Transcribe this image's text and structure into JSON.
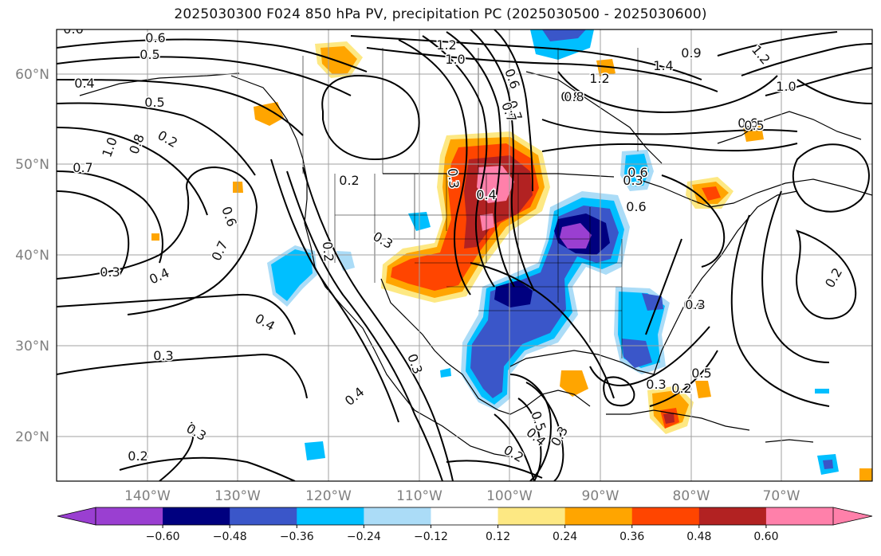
{
  "title": "2025030300 F024 850 hPa PV, precipitation PC (2025030500 - 2025030600)",
  "lat_labels": [
    "60°N",
    "50°N",
    "40°N",
    "30°N",
    "20°N"
  ],
  "lon_labels": [
    "140°W",
    "130°W",
    "120°W",
    "110°W",
    "100°W",
    "90°W",
    "80°W",
    "70°W"
  ],
  "contour_labels": [
    "0.6",
    "0.6",
    "0.5",
    "0.4",
    "0.5",
    "1.0",
    "0.8",
    "0.7",
    "0.6",
    "0.7",
    "0.3",
    "0.4",
    "0.3",
    "0.2",
    "0.4",
    "0.3",
    "0.2",
    "0.4",
    "0.3",
    "0.2",
    "0.5",
    "0.4",
    "0.3",
    "0.2",
    "0.2",
    "0.3",
    "0.4",
    "0.5",
    "0.6",
    "1.2",
    "1.0",
    "0.7",
    "1.2",
    "1.4",
    "0.8",
    "0.9",
    "1.2",
    "1.0",
    "0.6",
    "0.6",
    "0.2",
    "0.3",
    "0.2",
    "0.3",
    "0.3",
    "0.3",
    "0.8",
    "0.7",
    "0.4",
    "0.5",
    "0.6"
  ],
  "colorbar": {
    "ticks": [
      "−0.60",
      "−0.48",
      "−0.36",
      "−0.24",
      "−0.12",
      "0.12",
      "0.24",
      "0.36",
      "0.48",
      "0.60"
    ],
    "colors": [
      "#9a3fd1",
      "#00007f",
      "#3a56c9",
      "#00bfff",
      "#abdcf7",
      "#ffffff",
      "#fde883",
      "#ffa500",
      "#ff4500",
      "#b22222",
      "#ff80aa"
    ],
    "under_color": "#9a3fd1",
    "over_color": "#ff80aa"
  }
}
